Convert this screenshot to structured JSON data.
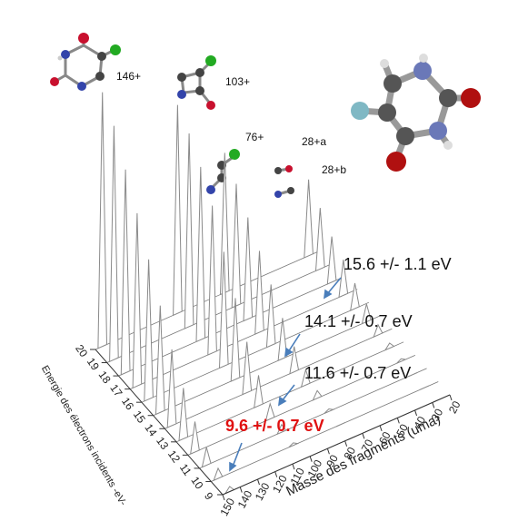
{
  "chart_data": {
    "type": "waterfall",
    "xlabel": "Masse des fragments (uma)",
    "ylabel": "Energie des électrons incidents -eV-",
    "xlim": [
      20,
      150
    ],
    "xticks": [
      150,
      140,
      130,
      120,
      110,
      100,
      90,
      80,
      70,
      60,
      50,
      40,
      30,
      20
    ],
    "ylim": [
      9,
      20
    ],
    "yticks": [
      9,
      10,
      11,
      12,
      13,
      14,
      15,
      16,
      17,
      18,
      19,
      20
    ],
    "zlim": [
      0,
      100
    ],
    "x": [
      146,
      103,
      76,
      28
    ],
    "color": "#8a8a8a",
    "series": [
      {
        "y": 9,
        "values": [
          2,
          0,
          0,
          0
        ]
      },
      {
        "y": 10,
        "values": [
          4,
          1,
          0,
          0
        ]
      },
      {
        "y": 11,
        "values": [
          7,
          3,
          1,
          0
        ]
      },
      {
        "y": 12,
        "values": [
          12,
          6,
          3,
          1
        ]
      },
      {
        "y": 13,
        "values": [
          20,
          12,
          6,
          2
        ]
      },
      {
        "y": 14,
        "values": [
          30,
          20,
          10,
          4
        ]
      },
      {
        "y": 15,
        "values": [
          42,
          32,
          16,
          7
        ]
      },
      {
        "y": 16,
        "values": [
          55,
          45,
          24,
          10
        ]
      },
      {
        "y": 17,
        "values": [
          68,
          58,
          32,
          14
        ]
      },
      {
        "y": 18,
        "values": [
          80,
          68,
          40,
          18
        ]
      },
      {
        "y": 19,
        "values": [
          92,
          76,
          48,
          24
        ]
      },
      {
        "y": 20,
        "values": [
          100,
          82,
          55,
          30
        ]
      }
    ],
    "fragment_labels": [
      "146+",
      "103+",
      "76+",
      "28+a",
      "28+b"
    ],
    "energy_annotations": [
      {
        "text": "15.6 +/- 1.1 eV",
        "color": "#111111"
      },
      {
        "text": "14.1 +/- 0.7 eV",
        "color": "#111111"
      },
      {
        "text": "11.6 +/- 0.7 eV",
        "color": "#111111"
      },
      {
        "text": "9.6 +/- 0.7 eV",
        "color": "#e01010"
      }
    ]
  }
}
